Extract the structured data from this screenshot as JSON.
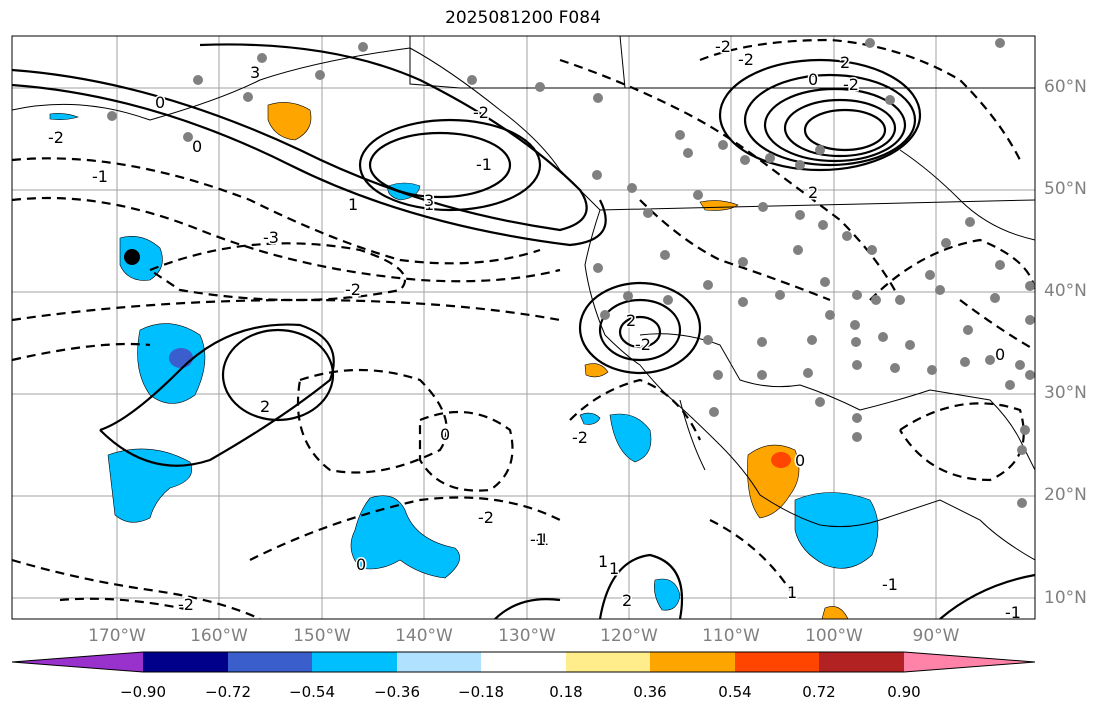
{
  "title": "2025081200 F084",
  "lon_labels": [
    "170°W",
    "160°W",
    "150°W",
    "140°W",
    "130°W",
    "120°W",
    "110°W",
    "100°W",
    "90°W"
  ],
  "lat_labels": [
    "60°N",
    "50°N",
    "40°N",
    "30°N",
    "20°N",
    "10°N"
  ],
  "colorbar": {
    "colors": [
      "#9932cc",
      "#00008b",
      "#3a5fcd",
      "#00bfff",
      "#b0e2ff",
      "#ffffff",
      "#ffec8b",
      "#ffa500",
      "#ff4500",
      "#b22222",
      "#ff83a8"
    ],
    "tick_labels": [
      "−0.90",
      "−0.72",
      "−0.54",
      "−0.36",
      "−0.18",
      "0.18",
      "0.36",
      "0.54",
      "0.72",
      "0.90"
    ]
  },
  "contour_labels": [
    "-2",
    "-1",
    "0",
    "3",
    "-3",
    "2",
    "-2",
    "1",
    "0",
    "-2",
    "-2",
    "2",
    "-2",
    "0",
    "2",
    "-2",
    "-1",
    "1",
    "-2",
    "0",
    "-1",
    "2",
    "-2",
    "1",
    "2",
    "3",
    "-2",
    "0",
    "-1",
    "-2",
    "1",
    "-1",
    "0",
    "1",
    "0",
    "-1"
  ]
}
